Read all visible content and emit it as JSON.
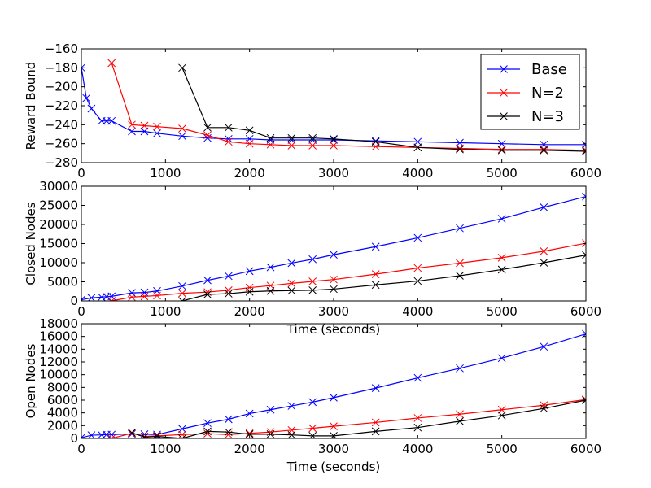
{
  "figure": {
    "background": "#ffffff"
  },
  "series_styles": [
    {
      "name": "Base",
      "color": "#0000ff"
    },
    {
      "name": "N=2",
      "color": "#ff0000"
    },
    {
      "name": "N=3",
      "color": "#000000"
    }
  ],
  "chart_data": [
    {
      "type": "line",
      "id": "reward",
      "title": "",
      "xlabel": "",
      "ylabel": "Reward Bound",
      "xlim": [
        0,
        6000
      ],
      "ylim": [
        -280,
        -160
      ],
      "xticks": [
        0,
        1000,
        2000,
        3000,
        4000,
        5000,
        6000
      ],
      "yticks": [
        -280,
        -260,
        -240,
        -220,
        -200,
        -180,
        -160
      ],
      "xtick_labels": [
        "0",
        "1000",
        "2000",
        "3000",
        "4000",
        "5000",
        "6000"
      ],
      "ytick_labels": [
        "−280",
        "−260",
        "−240",
        "−220",
        "−200",
        "−180",
        "−160"
      ],
      "legend": {
        "position": "top-right",
        "entries": [
          "Base",
          "N=2",
          "N=3"
        ]
      },
      "series": [
        {
          "name": "Base",
          "color": "#0000ff",
          "x": [
            0,
            60,
            120,
            240,
            300,
            360,
            600,
            750,
            900,
            1200,
            1500,
            1750,
            2000,
            2250,
            2500,
            2750,
            3000,
            3500,
            4000,
            4500,
            5000,
            5500,
            6000
          ],
          "y": [
            -180,
            -212,
            -223,
            -236,
            -236,
            -236,
            -247,
            -247,
            -249,
            -252,
            -254,
            -255,
            -255,
            -256,
            -256,
            -256,
            -256,
            -257,
            -258,
            -259,
            -260,
            -261,
            -261
          ]
        },
        {
          "name": "N=2",
          "color": "#ff0000",
          "x": [
            360,
            600,
            750,
            900,
            1200,
            1500,
            1750,
            2000,
            2250,
            2500,
            2750,
            3000,
            3500,
            4000,
            4500,
            5000,
            5500,
            6000
          ],
          "y": [
            -175,
            -240,
            -241,
            -242,
            -244,
            -251,
            -258,
            -260,
            -261,
            -262,
            -262,
            -262,
            -263,
            -264,
            -265,
            -266,
            -266,
            -267
          ]
        },
        {
          "name": "N=3",
          "color": "#000000",
          "x": [
            1200,
            1500,
            1750,
            2000,
            2250,
            2500,
            2750,
            3000,
            3500,
            4000,
            4500,
            5000,
            5500,
            6000
          ],
          "y": [
            -180,
            -243,
            -243,
            -246,
            -254,
            -254,
            -254,
            -255,
            -258,
            -264,
            -266,
            -267,
            -267,
            -268
          ]
        }
      ]
    },
    {
      "type": "line",
      "id": "closed",
      "title": "",
      "xlabel": "Time (seconds)",
      "ylabel": "Closed Nodes",
      "xlim": [
        0,
        6000
      ],
      "ylim": [
        0,
        30000
      ],
      "xticks": [
        0,
        1000,
        2000,
        3000,
        4000,
        5000,
        6000
      ],
      "yticks": [
        0,
        5000,
        10000,
        15000,
        20000,
        25000,
        30000
      ],
      "xtick_labels": [
        "0",
        "1000",
        "2000",
        "3000",
        "4000",
        "5000",
        "6000"
      ],
      "ytick_labels": [
        "0",
        "5000",
        "10000",
        "15000",
        "20000",
        "25000",
        "30000"
      ],
      "series": [
        {
          "name": "Base",
          "color": "#0000ff",
          "x": [
            0,
            120,
            240,
            300,
            360,
            600,
            750,
            900,
            1200,
            1500,
            1750,
            2000,
            2250,
            2500,
            2750,
            3000,
            3500,
            4000,
            4500,
            5000,
            5500,
            6000
          ],
          "y": [
            300,
            800,
            1000,
            1100,
            1200,
            2100,
            2200,
            2600,
            3900,
            5400,
            6500,
            7800,
            8800,
            9900,
            10900,
            12100,
            14200,
            16500,
            19000,
            21500,
            24500,
            27300
          ]
        },
        {
          "name": "N=2",
          "color": "#ff0000",
          "x": [
            360,
            600,
            750,
            900,
            1200,
            1500,
            1750,
            2000,
            2250,
            2500,
            2750,
            3000,
            3500,
            4000,
            4500,
            5000,
            5500,
            6000
          ],
          "y": [
            0,
            1000,
            1200,
            1400,
            2000,
            2300,
            2800,
            3500,
            4000,
            4600,
            5100,
            5600,
            7000,
            8600,
            9900,
            11300,
            13000,
            15100
          ]
        },
        {
          "name": "N=3",
          "color": "#000000",
          "x": [
            1200,
            1500,
            1750,
            2000,
            2250,
            2500,
            2750,
            3000,
            3500,
            4000,
            4500,
            5000,
            5500,
            6000
          ],
          "y": [
            0,
            1700,
            1900,
            2400,
            2600,
            2700,
            2800,
            3100,
            4200,
            5200,
            6600,
            8200,
            10000,
            12000
          ]
        }
      ]
    },
    {
      "type": "line",
      "id": "open",
      "title": "",
      "xlabel": "Time (seconds)",
      "ylabel": "Open Nodes",
      "xlim": [
        0,
        6000
      ],
      "ylim": [
        0,
        18000
      ],
      "xticks": [
        0,
        1000,
        2000,
        3000,
        4000,
        5000,
        6000
      ],
      "yticks": [
        0,
        2000,
        4000,
        6000,
        8000,
        10000,
        12000,
        14000,
        16000,
        18000
      ],
      "xtick_labels": [
        "0",
        "1000",
        "2000",
        "3000",
        "4000",
        "5000",
        "6000"
      ],
      "ytick_labels": [
        "0",
        "2000",
        "4000",
        "6000",
        "8000",
        "10000",
        "12000",
        "14000",
        "16000",
        "18000"
      ],
      "series": [
        {
          "name": "Base",
          "color": "#0000ff",
          "x": [
            0,
            120,
            240,
            300,
            360,
            600,
            750,
            900,
            1200,
            1500,
            1750,
            2000,
            2250,
            2500,
            2750,
            3000,
            3500,
            4000,
            4500,
            5000,
            5500,
            6000
          ],
          "y": [
            100,
            500,
            550,
            600,
            600,
            700,
            650,
            600,
            1500,
            2400,
            3000,
            3900,
            4500,
            5100,
            5700,
            6400,
            7900,
            9500,
            11000,
            12600,
            14400,
            16400
          ]
        },
        {
          "name": "N=2",
          "color": "#ff0000",
          "x": [
            360,
            600,
            750,
            900,
            1200,
            1500,
            1750,
            2000,
            2250,
            2500,
            2750,
            3000,
            3500,
            4000,
            4500,
            5000,
            5500,
            6000
          ],
          "y": [
            0,
            800,
            300,
            400,
            600,
            750,
            600,
            800,
            1000,
            1300,
            1600,
            1900,
            2500,
            3200,
            3800,
            4500,
            5200,
            6100
          ]
        },
        {
          "name": "N=3",
          "color": "#000000",
          "x": [
            600,
            750,
            900,
            1200,
            1500,
            1750,
            2000,
            2250,
            2500,
            2750,
            3000,
            3500,
            4000,
            4500,
            5000,
            5500,
            6000
          ],
          "y": [
            900,
            200,
            300,
            0,
            1100,
            1000,
            650,
            650,
            550,
            400,
            400,
            1100,
            1700,
            2700,
            3600,
            4700,
            6000
          ]
        }
      ]
    }
  ]
}
